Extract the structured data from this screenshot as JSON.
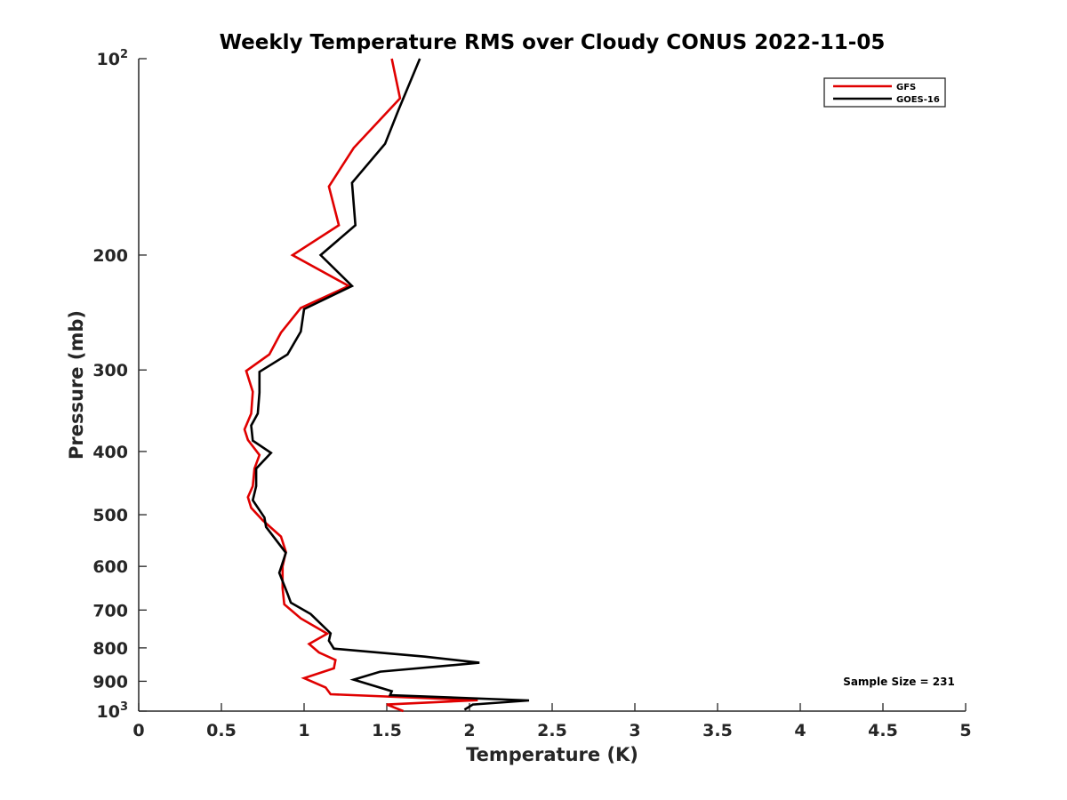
{
  "chart_data": {
    "type": "line",
    "title": "Weekly Temperature RMS over Cloudy CONUS 2022-11-05",
    "xlabel": "Temperature (K)",
    "ylabel": "Pressure (mb)",
    "xlim": [
      0,
      5
    ],
    "ylim": [
      100,
      1000
    ],
    "y_scale": "log",
    "y_reversed": true,
    "x_ticks": [
      "0",
      "0.5",
      "1",
      "1.5",
      "2",
      "2.5",
      "3",
      "3.5",
      "4",
      "4.5",
      "5"
    ],
    "y_ticks": [
      {
        "value": 100,
        "base": "10",
        "exp": "2"
      },
      {
        "value": 200,
        "label": "200"
      },
      {
        "value": 300,
        "label": "300"
      },
      {
        "value": 400,
        "label": "400"
      },
      {
        "value": 500,
        "label": "500"
      },
      {
        "value": 600,
        "label": "600"
      },
      {
        "value": 700,
        "label": "700"
      },
      {
        "value": 800,
        "label": "800"
      },
      {
        "value": 900,
        "label": "900"
      },
      {
        "value": 1000,
        "base": "10",
        "exp": "3"
      }
    ],
    "grid": false,
    "legend": "top-right",
    "annotation": "Sample Size = 231",
    "series": [
      {
        "name": "GFS",
        "color": "#e00000",
        "points": [
          {
            "x": 1.53,
            "p": 100
          },
          {
            "x": 1.58,
            "p": 115
          },
          {
            "x": 1.3,
            "p": 137
          },
          {
            "x": 1.15,
            "p": 157
          },
          {
            "x": 1.21,
            "p": 180
          },
          {
            "x": 0.93,
            "p": 200
          },
          {
            "x": 1.27,
            "p": 223
          },
          {
            "x": 0.98,
            "p": 241
          },
          {
            "x": 0.86,
            "p": 263
          },
          {
            "x": 0.79,
            "p": 284
          },
          {
            "x": 0.65,
            "p": 301
          },
          {
            "x": 0.69,
            "p": 324
          },
          {
            "x": 0.68,
            "p": 350
          },
          {
            "x": 0.64,
            "p": 370
          },
          {
            "x": 0.66,
            "p": 384
          },
          {
            "x": 0.73,
            "p": 405
          },
          {
            "x": 0.7,
            "p": 425
          },
          {
            "x": 0.69,
            "p": 452
          },
          {
            "x": 0.66,
            "p": 470
          },
          {
            "x": 0.68,
            "p": 488
          },
          {
            "x": 0.75,
            "p": 510
          },
          {
            "x": 0.86,
            "p": 540
          },
          {
            "x": 0.89,
            "p": 570
          },
          {
            "x": 0.87,
            "p": 600
          },
          {
            "x": 0.87,
            "p": 648
          },
          {
            "x": 0.88,
            "p": 686
          },
          {
            "x": 0.98,
            "p": 721
          },
          {
            "x": 1.14,
            "p": 761
          },
          {
            "x": 1.03,
            "p": 789
          },
          {
            "x": 1.09,
            "p": 813
          },
          {
            "x": 1.19,
            "p": 835
          },
          {
            "x": 1.18,
            "p": 860
          },
          {
            "x": 1.0,
            "p": 890
          },
          {
            "x": 1.13,
            "p": 920
          },
          {
            "x": 1.16,
            "p": 942
          },
          {
            "x": 2.05,
            "p": 962
          },
          {
            "x": 1.5,
            "p": 977
          },
          {
            "x": 1.6,
            "p": 1000
          }
        ]
      },
      {
        "name": "GOES-16",
        "color": "#000000",
        "points": [
          {
            "x": 1.7,
            "p": 100
          },
          {
            "x": 1.57,
            "p": 120
          },
          {
            "x": 1.49,
            "p": 135
          },
          {
            "x": 1.29,
            "p": 155
          },
          {
            "x": 1.31,
            "p": 180
          },
          {
            "x": 1.1,
            "p": 200
          },
          {
            "x": 1.29,
            "p": 223
          },
          {
            "x": 1.0,
            "p": 242
          },
          {
            "x": 0.98,
            "p": 262
          },
          {
            "x": 0.9,
            "p": 284
          },
          {
            "x": 0.73,
            "p": 302
          },
          {
            "x": 0.73,
            "p": 325
          },
          {
            "x": 0.72,
            "p": 350
          },
          {
            "x": 0.68,
            "p": 365
          },
          {
            "x": 0.69,
            "p": 385
          },
          {
            "x": 0.8,
            "p": 402
          },
          {
            "x": 0.71,
            "p": 425
          },
          {
            "x": 0.71,
            "p": 452
          },
          {
            "x": 0.69,
            "p": 475
          },
          {
            "x": 0.76,
            "p": 505
          },
          {
            "x": 0.77,
            "p": 522
          },
          {
            "x": 0.89,
            "p": 572
          },
          {
            "x": 0.85,
            "p": 614
          },
          {
            "x": 0.9,
            "p": 661
          },
          {
            "x": 0.92,
            "p": 682
          },
          {
            "x": 1.04,
            "p": 710
          },
          {
            "x": 1.16,
            "p": 760
          },
          {
            "x": 1.15,
            "p": 780
          },
          {
            "x": 1.18,
            "p": 802
          },
          {
            "x": 1.73,
            "p": 825
          },
          {
            "x": 2.06,
            "p": 843
          },
          {
            "x": 1.46,
            "p": 870
          },
          {
            "x": 1.3,
            "p": 895
          },
          {
            "x": 1.53,
            "p": 932
          },
          {
            "x": 1.52,
            "p": 945
          },
          {
            "x": 2.36,
            "p": 963
          },
          {
            "x": 2.02,
            "p": 977
          },
          {
            "x": 1.97,
            "p": 995
          }
        ]
      }
    ]
  }
}
